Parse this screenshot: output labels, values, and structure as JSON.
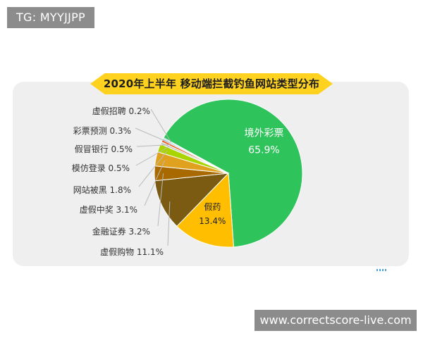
{
  "tg_label": "TG: MYYJJPP",
  "website": "www.correctscore-live.com",
  "chart_data": {
    "type": "pie",
    "title": "2020年上半年 移动端拦截钓鱼网站类型分布",
    "slices": [
      {
        "label": "境外彩票",
        "value": 65.9,
        "display": "65.9%",
        "color": "#2fc35b"
      },
      {
        "label": "假药",
        "value": 13.4,
        "display": "13.4%",
        "color": "#ffbe00"
      },
      {
        "label": "虚假购物",
        "value": 11.1,
        "display": "11.1%",
        "color": "#7b5a12"
      },
      {
        "label": "金融证券",
        "value": 3.2,
        "display": "3.2%",
        "color": "#a86a00"
      },
      {
        "label": "虚假中奖",
        "value": 3.1,
        "display": "3.1%",
        "color": "#e0a21e"
      },
      {
        "label": "网站被黑",
        "value": 1.8,
        "display": "1.8%",
        "color": "#a9d400"
      },
      {
        "label": "模仿登录",
        "value": 0.5,
        "display": "0.5%",
        "color": "#c6c6c6"
      },
      {
        "label": "假冒银行",
        "value": 0.5,
        "display": "0.5%",
        "color": "#e8632a"
      },
      {
        "label": "彩票预测",
        "value": 0.3,
        "display": "0.3%",
        "color": "#6cc0e8"
      },
      {
        "label": "虚假招聘",
        "value": 0.2,
        "display": "0.2%",
        "color": "#2a6fb0"
      }
    ],
    "legend": "none",
    "grid": false
  }
}
